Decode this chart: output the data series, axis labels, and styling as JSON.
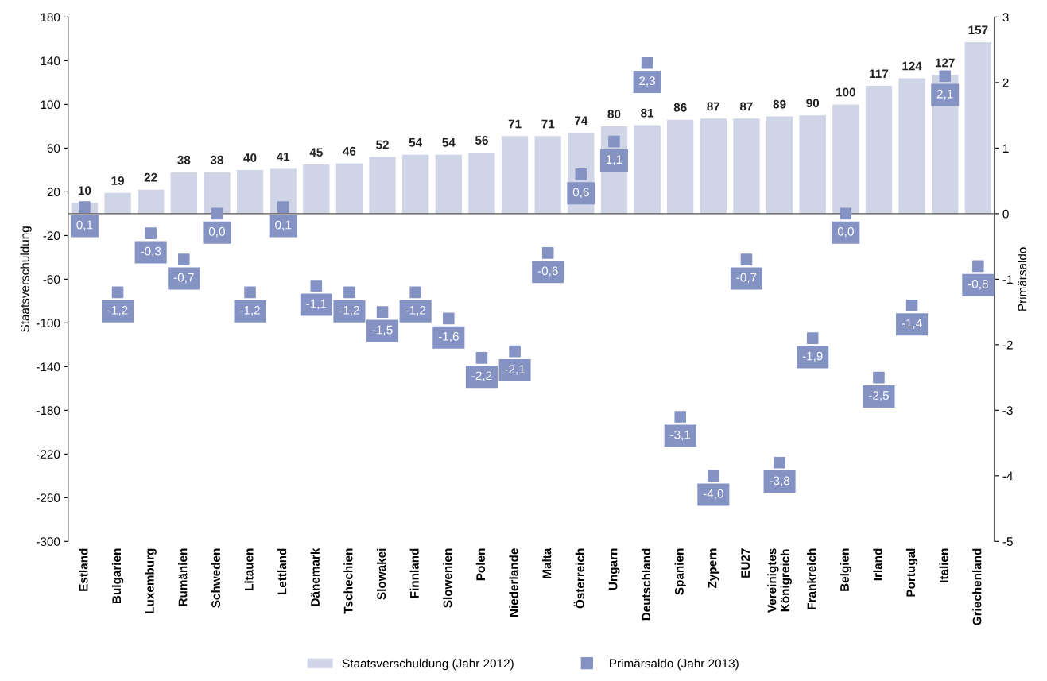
{
  "chart_data": {
    "type": "bar",
    "categories": [
      "Estland",
      "Bulgarien",
      "Luxemburg",
      "Rumänien",
      "Schweden",
      "Litauen",
      "Lettland",
      "Dänemark",
      "Tschechien",
      "Slowakei",
      "Finnland",
      "Slowenien",
      "Polen",
      "Niederlande",
      "Malta",
      "Österreich",
      "Ungarn",
      "Deutschland",
      "Spanien",
      "Zypern",
      "EU27",
      "Vereinigtes\nKönigreich",
      "Frankreich",
      "Belgien",
      "Irland",
      "Portugal",
      "Italien",
      "Griechenland"
    ],
    "series": [
      {
        "name": "Staatsverschuldung (Jahr 2012)",
        "color": "#cfd4e6",
        "values": [
          10,
          19,
          22,
          38,
          38,
          40,
          41,
          45,
          46,
          52,
          54,
          54,
          56,
          71,
          71,
          74,
          80,
          81,
          86,
          87,
          87,
          89,
          90,
          100,
          117,
          124,
          127,
          157
        ]
      },
      {
        "name": "Primärsaldo (Jahr 2013)",
        "type": "scatter",
        "axis": "y2",
        "color": "#8593c4",
        "values": [
          0.1,
          -1.2,
          -0.3,
          -0.7,
          0.0,
          -1.2,
          0.1,
          -1.1,
          -1.2,
          -1.5,
          -1.2,
          -1.6,
          -2.2,
          -2.1,
          -0.6,
          0.6,
          1.1,
          2.3,
          -3.1,
          -4.0,
          -0.7,
          -3.8,
          -1.9,
          0.0,
          -2.5,
          -1.4,
          2.1,
          -0.8
        ],
        "value_labels": [
          "0,1",
          "-1,2",
          "-0,3",
          "-0,7",
          "0,0",
          "-1,2",
          "0,1",
          "-1,1",
          "-1,2",
          "-1,5",
          "-1,2",
          "-1,6",
          "-2,2",
          "-2,1",
          "-0,6",
          "0,6",
          "1,1",
          "2,3",
          "-3,1",
          "-4,0",
          "-0,7",
          "-3,8",
          "-1,9",
          "0,0",
          "-2,5",
          "-1,4",
          "2,1",
          "-0,8"
        ]
      }
    ],
    "data_labels": true,
    "ylabel": "Staatsverschuldung",
    "y2label": "Primärsaldo",
    "ylim": [
      -300,
      180
    ],
    "yticks": [
      -300,
      -260,
      -220,
      -180,
      -140,
      -100,
      -60,
      -20,
      20,
      60,
      100,
      140,
      180
    ],
    "y2lim": [
      -5,
      3
    ],
    "y2ticks": [
      -5,
      -4,
      -3,
      -2,
      -1,
      0,
      1,
      2,
      3
    ],
    "marker": "square",
    "legend": "bottom"
  }
}
